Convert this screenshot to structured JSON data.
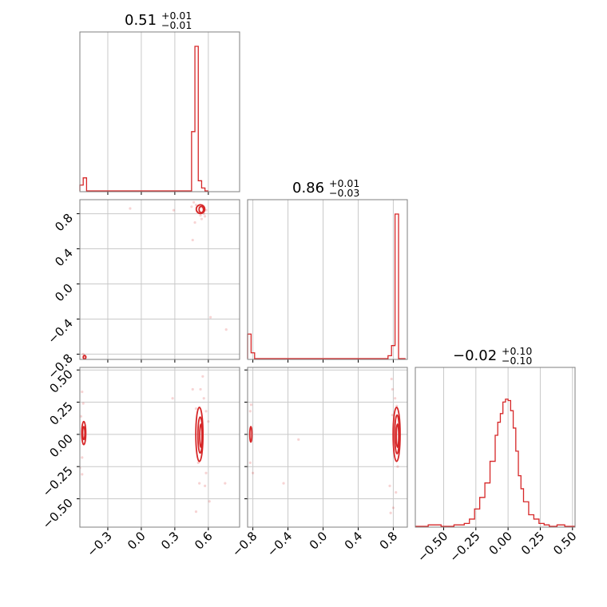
{
  "figure": {
    "params": [
      {
        "title_main": "0.51",
        "title_sup": "+0.01",
        "title_sub": "−0.01"
      },
      {
        "title_main": "0.86",
        "title_sup": "+0.01",
        "title_sub": "−0.03"
      },
      {
        "title_main": "−0.02",
        "title_sup": "+0.10",
        "title_sub": "−0.10"
      }
    ],
    "colors": {
      "series": "#d62728",
      "grid": "#c9c9c9",
      "frame": "#7f7f7f"
    }
  },
  "chart_data": {
    "type": "corner",
    "parameters": [
      {
        "range": [
          -0.55,
          0.88
        ],
        "ticks": [
          -0.3,
          0.0,
          0.3,
          0.6
        ],
        "tick_labels": [
          "−0.3",
          "0.0",
          "0.3",
          "0.6"
        ]
      },
      {
        "range": [
          -0.86,
          0.96
        ],
        "ticks": [
          -0.8,
          -0.4,
          0.0,
          0.4,
          0.8
        ],
        "tick_labels": [
          "−0.8",
          "−0.4",
          "0.0",
          "0.4",
          "0.8"
        ]
      },
      {
        "range": [
          -0.72,
          0.52
        ],
        "ticks": [
          -0.5,
          -0.25,
          0.0,
          0.25,
          0.5
        ],
        "tick_labels": [
          "−0.50",
          "−0.25",
          "0.00",
          "0.25",
          "0.50"
        ]
      }
    ],
    "histograms": [
      {
        "param": 0,
        "bins": [
          -0.55,
          -0.52,
          -0.49,
          -0.46,
          0.45,
          0.48,
          0.51,
          0.54,
          0.57,
          0.6
        ],
        "counts": [
          0.04,
          0.09,
          0.0,
          0.0,
          0.41,
          1.0,
          0.07,
          0.02,
          0.0
        ]
      },
      {
        "param": 1,
        "bins": [
          -0.86,
          -0.82,
          -0.78,
          0.74,
          0.78,
          0.82,
          0.86,
          0.9,
          0.94
        ],
        "counts": [
          0.17,
          0.04,
          0.0,
          0.02,
          0.09,
          1.0,
          0.0,
          0.0
        ]
      },
      {
        "param": 2,
        "bins": [
          -0.72,
          -0.62,
          -0.52,
          -0.42,
          -0.34,
          -0.3,
          -0.26,
          -0.22,
          -0.18,
          -0.14,
          -0.1,
          -0.08,
          -0.06,
          -0.04,
          -0.02,
          0.0,
          0.02,
          0.04,
          0.06,
          0.08,
          0.1,
          0.12,
          0.16,
          0.2,
          0.24,
          0.28,
          0.32,
          0.38,
          0.44,
          0.52
        ],
        "counts": [
          0.0,
          0.01,
          0.0,
          0.01,
          0.02,
          0.05,
          0.12,
          0.2,
          0.3,
          0.45,
          0.63,
          0.72,
          0.78,
          0.86,
          0.88,
          0.87,
          0.8,
          0.68,
          0.52,
          0.35,
          0.26,
          0.17,
          0.08,
          0.05,
          0.02,
          0.01,
          0.0,
          0.01,
          0.0
        ]
      }
    ],
    "scatter": [
      {
        "px": 0,
        "py": 1,
        "points": [
          [
            0.47,
            0.93
          ],
          [
            0.49,
            0.9
          ],
          [
            0.52,
            0.88
          ],
          [
            0.55,
            0.86
          ],
          [
            0.53,
            0.78
          ],
          [
            0.54,
            0.74
          ],
          [
            0.48,
            0.7
          ],
          [
            0.46,
            0.5
          ],
          [
            0.29,
            0.84
          ],
          [
            -0.1,
            0.86
          ],
          [
            0.51,
            0.82
          ],
          [
            0.56,
            0.8
          ],
          [
            0.58,
            0.84
          ],
          [
            0.62,
            -0.38
          ],
          [
            0.76,
            -0.52
          ],
          [
            -0.52,
            -0.8
          ],
          [
            -0.5,
            -0.83
          ],
          [
            -0.51,
            -0.86
          ],
          [
            0.45,
            0.88
          ],
          [
            0.57,
            0.77
          ]
        ],
        "contours": [
          {
            "cx": 0.537,
            "cy": 0.848,
            "rx": 0.02,
            "ry": 0.035
          },
          {
            "cx": 0.53,
            "cy": 0.852,
            "rx": 0.038,
            "ry": 0.05
          }
        ],
        "contours_secondary": [
          {
            "cx": -0.508,
            "cy": -0.835,
            "rx": 0.012,
            "ry": 0.02
          }
        ]
      },
      {
        "px": 0,
        "py": 2,
        "points": [
          [
            0.55,
            0.45
          ],
          [
            0.53,
            0.35
          ],
          [
            0.56,
            0.28
          ],
          [
            0.58,
            -0.3
          ],
          [
            0.57,
            -0.4
          ],
          [
            0.52,
            -0.38
          ],
          [
            0.61,
            -0.52
          ],
          [
            0.46,
            0.35
          ],
          [
            0.49,
            -0.6
          ],
          [
            0.75,
            -0.38
          ],
          [
            0.28,
            0.28
          ],
          [
            0.49,
            0.2
          ],
          [
            0.58,
            0.18
          ],
          [
            -0.53,
            0.33
          ],
          [
            -0.52,
            0.24
          ],
          [
            -0.55,
            -0.26
          ],
          [
            -0.53,
            -0.31
          ],
          [
            -0.54,
            0.14
          ],
          [
            -0.53,
            -0.18
          ],
          [
            0.6,
            0.1
          ],
          [
            0.51,
            -0.22
          ]
        ],
        "contours": [
          {
            "cx": 0.533,
            "cy": -0.01,
            "rx": 0.01,
            "ry": 0.09
          },
          {
            "cx": 0.527,
            "cy": -0.005,
            "rx": 0.02,
            "ry": 0.14
          },
          {
            "cx": 0.52,
            "cy": 0.0,
            "rx": 0.032,
            "ry": 0.21
          }
        ],
        "contours_secondary": [
          {
            "cx": -0.515,
            "cy": 0.01,
            "rx": 0.01,
            "ry": 0.05
          },
          {
            "cx": -0.515,
            "cy": 0.01,
            "rx": 0.018,
            "ry": 0.09
          }
        ]
      },
      {
        "px": 1,
        "py": 2,
        "points": [
          [
            0.78,
            0.43
          ],
          [
            0.79,
            0.35
          ],
          [
            0.82,
            0.28
          ],
          [
            0.76,
            -0.4
          ],
          [
            0.8,
            -0.57
          ],
          [
            0.77,
            -0.61
          ],
          [
            0.83,
            -0.45
          ],
          [
            -0.28,
            -0.04
          ],
          [
            -0.45,
            -0.38
          ],
          [
            -0.82,
            0.23
          ],
          [
            -0.83,
            -0.22
          ],
          [
            -0.8,
            -0.3
          ],
          [
            -0.83,
            0.18
          ],
          [
            0.84,
            0.22
          ],
          [
            0.85,
            -0.25
          ],
          [
            0.79,
            0.15
          ]
        ],
        "contours": [
          {
            "cx": 0.848,
            "cy": -0.01,
            "rx": 0.014,
            "ry": 0.09
          },
          {
            "cx": 0.843,
            "cy": 0.0,
            "rx": 0.026,
            "ry": 0.15
          },
          {
            "cx": 0.838,
            "cy": 0.0,
            "rx": 0.04,
            "ry": 0.21
          }
        ],
        "contours_secondary": [
          {
            "cx": -0.823,
            "cy": 0.0,
            "rx": 0.012,
            "ry": 0.06
          }
        ]
      }
    ]
  }
}
